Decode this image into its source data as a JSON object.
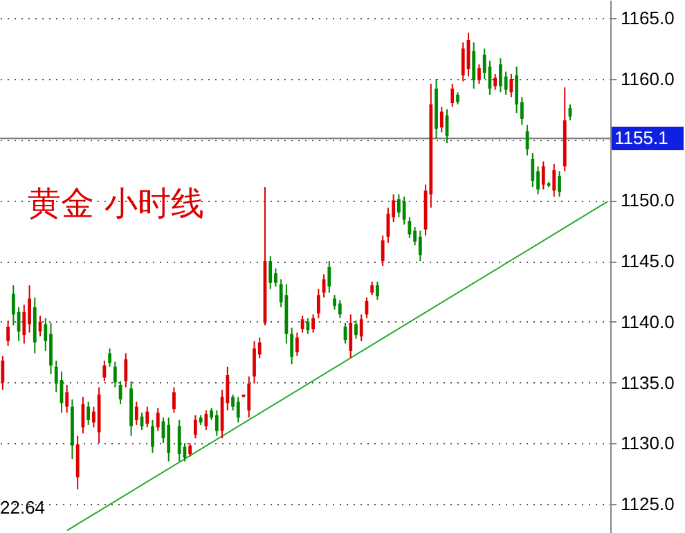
{
  "chart_data": {
    "type": "candlestick",
    "title": "黄金   小时线",
    "categories": [
      null,
      null,
      null,
      null,
      null,
      null,
      null,
      null,
      null,
      null,
      null,
      null,
      null,
      null,
      null,
      null,
      null,
      null,
      null,
      null,
      null,
      null,
      null,
      null,
      null,
      null,
      null,
      null,
      null,
      null,
      null,
      null,
      null,
      null,
      null,
      null,
      null,
      null,
      null,
      null,
      null,
      null,
      null,
      null,
      null,
      null,
      null,
      null,
      null,
      null,
      null,
      null,
      null,
      null,
      null,
      null,
      null,
      null,
      null,
      null,
      null,
      null,
      null,
      null,
      null,
      null,
      null,
      null,
      null,
      null,
      null,
      null,
      null,
      null,
      null,
      null,
      null,
      null,
      null,
      null,
      null,
      null,
      null,
      null,
      null,
      null,
      null,
      null,
      null,
      null,
      null,
      null,
      null,
      null,
      null,
      null,
      null,
      null,
      null,
      null,
      null,
      null,
      null,
      null,
      null,
      null,
      null,
      null,
      null,
      null,
      null,
      null,
      null,
      null
    ],
    "ohlc": [
      [
        1135.0,
        1137.2,
        1134.4,
        1136.8
      ],
      [
        1138.4,
        1140.1,
        1138.0,
        1139.6
      ],
      [
        1142.3,
        1143.0,
        1139.7,
        1140.6
      ],
      [
        1140.8,
        1141.2,
        1138.4,
        1139.2
      ],
      [
        1138.9,
        1141.4,
        1138.2,
        1140.8
      ],
      [
        1139.8,
        1143.0,
        1139.1,
        1141.9
      ],
      [
        1141.2,
        1142.0,
        1137.4,
        1138.3
      ],
      [
        1139.2,
        1140.5,
        1138.8,
        1140.0
      ],
      [
        1139.8,
        1140.3,
        1137.6,
        1138.4
      ],
      [
        1139.0,
        1139.9,
        1135.7,
        1136.4
      ],
      [
        1136.3,
        1136.8,
        1134.2,
        1134.9
      ],
      [
        1135.2,
        1135.9,
        1132.5,
        1133.3
      ],
      [
        1133.0,
        1134.8,
        1132.5,
        1134.2
      ],
      [
        1133.0,
        1133.6,
        1128.7,
        1129.8
      ],
      [
        1127.2,
        1130.6,
        1126.2,
        1129.9
      ],
      [
        1131.3,
        1133.8,
        1130.8,
        1133.2
      ],
      [
        1133.0,
        1133.4,
        1131.5,
        1131.9
      ],
      [
        1131.7,
        1133.0,
        1131.3,
        1132.6
      ],
      [
        1130.9,
        1134.6,
        1130.0,
        1134.0
      ],
      [
        1135.4,
        1136.8,
        1135.1,
        1136.4
      ],
      [
        1137.4,
        1137.8,
        1136.3,
        1136.6
      ],
      [
        1136.3,
        1136.7,
        1134.6,
        1135.0
      ],
      [
        1134.8,
        1135.1,
        1133.2,
        1133.6
      ],
      [
        1135.1,
        1137.4,
        1134.6,
        1136.9
      ],
      [
        1134.5,
        1135.1,
        1130.6,
        1131.4
      ],
      [
        1131.9,
        1133.4,
        1131.5,
        1133.0
      ],
      [
        1132.2,
        1132.5,
        1131.1,
        1131.4
      ],
      [
        1131.6,
        1133.0,
        1131.3,
        1132.6
      ],
      [
        1131.4,
        1131.9,
        1129.2,
        1129.7
      ],
      [
        1131.3,
        1132.9,
        1131.0,
        1132.5
      ],
      [
        1131.8,
        1132.1,
        1130.0,
        1130.4
      ],
      [
        1131.5,
        1132.1,
        1128.5,
        1129.2
      ],
      [
        1132.8,
        1134.6,
        1132.5,
        1134.2
      ],
      [
        1131.4,
        1131.9,
        1128.5,
        1129.1
      ],
      [
        1129.7,
        1130.0,
        1128.5,
        1128.8
      ],
      [
        1129.1,
        1130.0,
        1128.9,
        1129.8
      ],
      [
        1130.7,
        1132.3,
        1130.4,
        1131.9
      ],
      [
        1132.1,
        1132.3,
        1131.5,
        1131.7
      ],
      [
        1131.4,
        1132.7,
        1131.1,
        1132.4
      ],
      [
        1132.7,
        1132.9,
        1131.9,
        1132.1
      ],
      [
        1132.3,
        1132.7,
        1130.6,
        1131.0
      ],
      [
        1131.0,
        1134.4,
        1130.4,
        1133.8
      ],
      [
        1133.3,
        1136.3,
        1132.7,
        1135.6
      ],
      [
        1133.8,
        1134.0,
        1132.7,
        1133.0
      ],
      [
        1133.4,
        1133.8,
        1131.7,
        1132.1
      ],
      [
        1133.8,
        1134.0,
        1133.8,
        1134.0
      ],
      [
        1132.7,
        1135.5,
        1132.1,
        1134.9
      ],
      [
        1135.5,
        1138.4,
        1134.9,
        1137.8
      ],
      [
        1137.3,
        1138.7,
        1137.0,
        1138.3
      ],
      [
        1139.9,
        1151.1,
        1139.7,
        1145.0
      ],
      [
        1145.0,
        1145.4,
        1142.7,
        1143.2
      ],
      [
        1144.0,
        1144.4,
        1142.9,
        1143.2
      ],
      [
        1143.1,
        1143.5,
        1141.2,
        1141.6
      ],
      [
        1142.2,
        1143.1,
        1138.2,
        1139.0
      ],
      [
        1139.0,
        1139.5,
        1136.5,
        1137.1
      ],
      [
        1137.5,
        1139.1,
        1137.2,
        1138.7
      ],
      [
        1139.4,
        1140.5,
        1139.1,
        1140.2
      ],
      [
        1140.0,
        1140.3,
        1139.0,
        1139.3
      ],
      [
        1139.4,
        1140.6,
        1139.1,
        1140.3
      ],
      [
        1140.7,
        1142.7,
        1140.3,
        1142.2
      ],
      [
        1142.4,
        1143.9,
        1142.0,
        1143.5
      ],
      [
        1144.5,
        1145.0,
        1142.4,
        1142.9
      ],
      [
        1141.9,
        1142.2,
        1141.0,
        1141.3
      ],
      [
        1141.5,
        1141.8,
        1140.3,
        1140.6
      ],
      [
        1139.6,
        1139.9,
        1138.2,
        1138.5
      ],
      [
        1137.6,
        1140.6,
        1137.0,
        1139.9
      ],
      [
        1139.8,
        1140.1,
        1138.6,
        1138.9
      ],
      [
        1138.8,
        1140.6,
        1138.4,
        1140.2
      ],
      [
        1140.6,
        1142.0,
        1140.3,
        1141.7
      ],
      [
        1142.4,
        1143.3,
        1142.2,
        1143.0
      ],
      [
        1143.0,
        1143.3,
        1141.8,
        1142.1
      ],
      [
        1145.0,
        1147.1,
        1144.6,
        1146.7
      ],
      [
        1147.0,
        1149.4,
        1146.5,
        1148.9
      ],
      [
        1148.6,
        1150.5,
        1148.2,
        1150.0
      ],
      [
        1150.1,
        1150.5,
        1148.6,
        1149.0
      ],
      [
        1149.9,
        1150.3,
        1148.0,
        1148.4
      ],
      [
        1148.3,
        1148.6,
        1146.9,
        1147.2
      ],
      [
        1147.5,
        1147.8,
        1146.3,
        1146.6
      ],
      [
        1147.0,
        1147.5,
        1145.0,
        1145.5
      ],
      [
        1147.6,
        1151.3,
        1147.1,
        1150.8
      ],
      [
        1150.5,
        1159.6,
        1149.4,
        1157.9
      ],
      [
        1159.2,
        1160.0,
        1155.1,
        1155.9
      ],
      [
        1156.0,
        1157.7,
        1155.6,
        1157.3
      ],
      [
        1157.0,
        1157.5,
        1154.7,
        1155.3
      ],
      [
        1158.0,
        1159.6,
        1157.7,
        1159.2
      ],
      [
        1158.7,
        1158.9,
        1157.9,
        1158.1
      ],
      [
        1160.3,
        1163.0,
        1159.8,
        1162.5
      ],
      [
        1160.8,
        1163.8,
        1160.2,
        1163.2
      ],
      [
        1162.3,
        1163.0,
        1159.2,
        1159.9
      ],
      [
        1159.9,
        1161.2,
        1159.6,
        1160.9
      ],
      [
        1162.0,
        1162.5,
        1160.0,
        1160.5
      ],
      [
        1161.0,
        1161.5,
        1158.7,
        1159.2
      ],
      [
        1159.4,
        1160.4,
        1159.1,
        1160.1
      ],
      [
        1161.2,
        1161.7,
        1158.9,
        1159.4
      ],
      [
        1160.2,
        1160.6,
        1158.7,
        1159.1
      ],
      [
        1158.9,
        1160.4,
        1158.5,
        1160.0
      ],
      [
        1160.3,
        1161.0,
        1157.2,
        1157.9
      ],
      [
        1158.1,
        1158.5,
        1156.2,
        1156.7
      ],
      [
        1155.7,
        1156.2,
        1153.7,
        1154.2
      ],
      [
        1153.4,
        1153.9,
        1151.1,
        1151.6
      ],
      [
        1152.4,
        1152.8,
        1150.5,
        1150.9
      ],
      [
        1151.3,
        1153.2,
        1150.9,
        1152.8
      ],
      [
        1151.4,
        1151.5,
        1151.1,
        1151.2
      ],
      [
        1150.8,
        1153.0,
        1150.3,
        1152.5
      ],
      [
        1152.0,
        1152.4,
        1150.3,
        1150.7
      ],
      [
        1152.8,
        1159.3,
        1152.4,
        1156.6
      ],
      [
        1157.6,
        1157.9,
        1156.6,
        1156.9
      ],
      null,
      null,
      null,
      null,
      null,
      null,
      null
    ],
    "colors": [
      "#dd0000",
      "#dd0000",
      "#008800",
      "#008800",
      "#dd0000",
      "#dd0000",
      "#008800",
      "#dd0000",
      "#008800",
      "#008800",
      "#008800",
      "#008800",
      "#dd0000",
      "#008800",
      "#dd0000",
      "#dd0000",
      "#008800",
      "#dd0000",
      "#dd0000",
      "#dd0000",
      "#008800",
      "#008800",
      "#008800",
      "#dd0000",
      "#008800",
      "#dd0000",
      "#008800",
      "#dd0000",
      "#008800",
      "#dd0000",
      "#008800",
      "#008800",
      "#dd0000",
      "#008800",
      "#008800",
      "#dd0000",
      "#dd0000",
      "#008800",
      "#dd0000",
      "#008800",
      "#008800",
      "#dd0000",
      "#dd0000",
      "#008800",
      "#008800",
      "#dd0000",
      "#dd0000",
      "#dd0000",
      "#dd0000",
      "#dd0000",
      "#008800",
      "#008800",
      "#008800",
      "#008800",
      "#008800",
      "#dd0000",
      "#dd0000",
      "#008800",
      "#dd0000",
      "#dd0000",
      "#dd0000",
      "#008800",
      "#008800",
      "#008800",
      "#008800",
      "#dd0000",
      "#008800",
      "#dd0000",
      "#dd0000",
      "#dd0000",
      "#008800",
      "#dd0000",
      "#dd0000",
      "#dd0000",
      "#008800",
      "#008800",
      "#008800",
      "#008800",
      "#008800",
      "#dd0000",
      "#dd0000",
      "#008800",
      "#dd0000",
      "#008800",
      "#dd0000",
      "#008800",
      "#dd0000",
      "#dd0000",
      "#008800",
      "#dd0000",
      "#008800",
      "#008800",
      "#dd0000",
      "#008800",
      "#008800",
      "#dd0000",
      "#008800",
      "#008800",
      "#008800",
      "#008800",
      "#008800",
      "#dd0000",
      "#008800",
      "#dd0000",
      "#008800",
      "#dd0000",
      "#008800",
      null,
      null,
      null,
      null,
      null,
      null,
      null
    ],
    "series": [
      {
        "type": "line",
        "color": "#22aa22",
        "values": [
          null,
          null,
          null,
          null,
          null,
          null,
          null,
          null,
          null,
          null,
          null,
          null,
          1122.8,
          null,
          null,
          null,
          null,
          null,
          null,
          null,
          null,
          null,
          null,
          null,
          null,
          null,
          null,
          null,
          null,
          null,
          null,
          null,
          null,
          null,
          null,
          null,
          null,
          null,
          null,
          null,
          null,
          null,
          null,
          null,
          null,
          null,
          null,
          null,
          null,
          null,
          null,
          null,
          null,
          null,
          null,
          null,
          null,
          null,
          null,
          null,
          null,
          null,
          null,
          null,
          null,
          null,
          null,
          null,
          null,
          null,
          null,
          null,
          null,
          null,
          null,
          null,
          null,
          null,
          null,
          null,
          null,
          null,
          null,
          null,
          null,
          null,
          null,
          null,
          null,
          null,
          null,
          null,
          null,
          null,
          null,
          null,
          null,
          null,
          null,
          null,
          null,
          null,
          null,
          null,
          null,
          null,
          null,
          null,
          null,
          null,
          null,
          null,
          null,
          1149.9
        ]
      }
    ],
    "ylim": [
      1122.6,
      1166.5
    ],
    "yticks": [
      {
        "value": 1125,
        "label": "1125.0"
      },
      {
        "value": 1130,
        "label": "1130.0"
      },
      {
        "value": 1135,
        "label": "1135.0"
      },
      {
        "value": 1140,
        "label": "1140.0"
      },
      {
        "value": 1145,
        "label": "1145.0"
      },
      {
        "value": 1150,
        "label": "1150.0"
      },
      {
        "value": 1155,
        "label": null
      },
      {
        "value": 1160,
        "label": "1160.0"
      },
      {
        "value": 1165,
        "label": "1165.0"
      }
    ],
    "ref_lines": [
      {
        "axis": "y",
        "value": 1155.1,
        "label": "1155.1",
        "color": "#808080"
      }
    ],
    "annotations": [
      "22.64"
    ],
    "grid": "y",
    "tick_labels": "y"
  }
}
